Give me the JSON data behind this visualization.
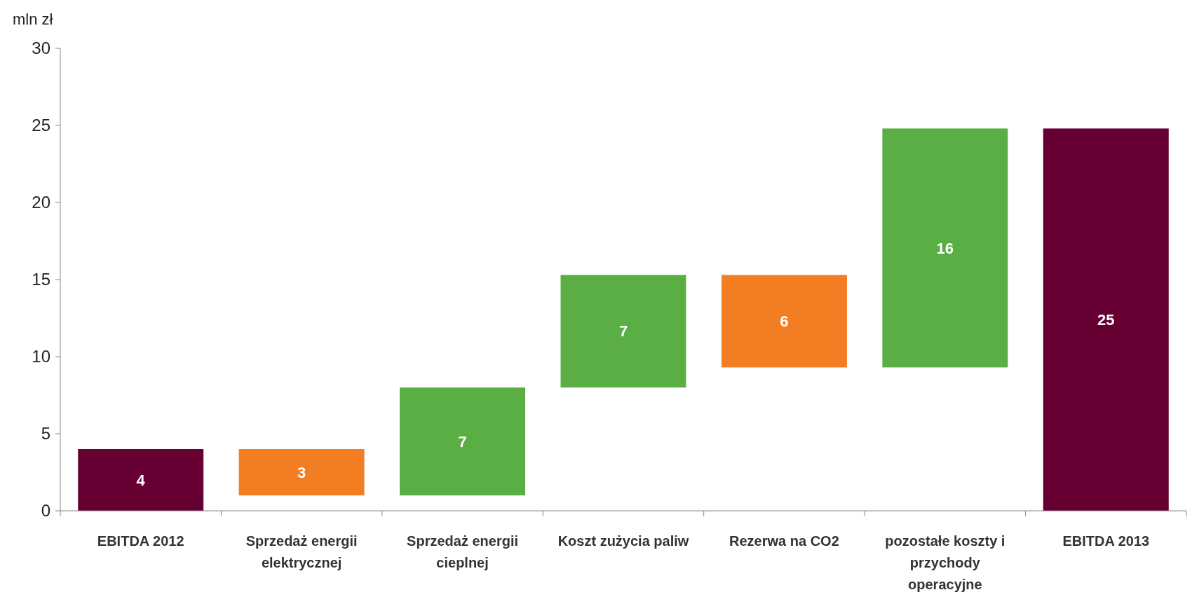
{
  "chart_data": {
    "type": "bar",
    "ylabel": "mln zł",
    "categories": [
      "EBITDA 2012",
      "Sprzedaż energii elektrycznej",
      "Sprzedaż energii cieplnej",
      "Koszt zużycia paliw",
      "Rezerwa na CO2",
      "pozostałe koszty i przychody operacyjne",
      "EBITDA 2013"
    ],
    "values": [
      4,
      3,
      7,
      7.3,
      6,
      15.5,
      24.8
    ],
    "base": [
      0,
      1,
      1,
      8,
      9.3,
      9.3,
      0
    ],
    "colors": [
      "#660033",
      "#f37d22",
      "#5aae44",
      "#5aae44",
      "#f37d22",
      "#5aae44",
      "#660033"
    ],
    "value_labels": [
      "4",
      "3",
      "7",
      "7",
      "6",
      "16",
      "25"
    ],
    "ylim": [
      0,
      30
    ],
    "yticks": [
      0,
      5,
      10,
      15,
      20,
      25,
      30
    ],
    "grid": false
  }
}
